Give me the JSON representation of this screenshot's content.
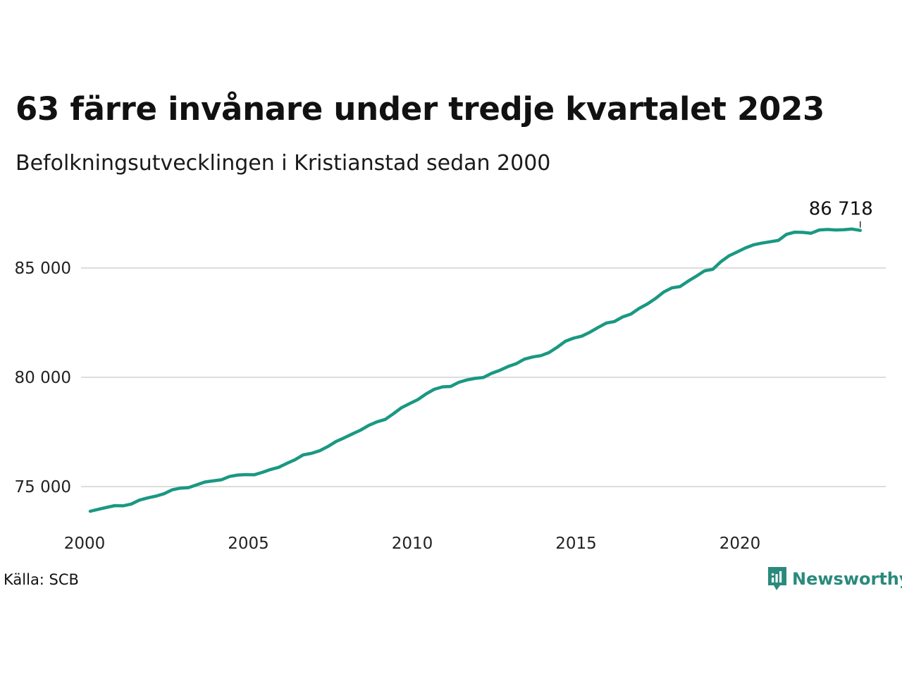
{
  "title": "63 färre invånare under tredje kvartalet 2023",
  "subtitle": "Befolkningsutvecklingen i Kristianstad sedan 2000",
  "source": "Källa: SCB",
  "brand": {
    "name": "Newsworthy",
    "icon": "newsworthy-logo-icon",
    "color": "#2a8a7c"
  },
  "colors": {
    "line": "#1a9882",
    "grid": "#dddddd"
  },
  "chart_data": {
    "type": "line",
    "title": "63 färre invånare under tredje kvartalet 2023",
    "subtitle": "Befolkningsutvecklingen i Kristianstad sedan 2000",
    "xlabel": "",
    "ylabel": "",
    "xlim": [
      2000,
      2024.5
    ],
    "ylim": [
      73500,
      87200
    ],
    "x_ticks": [
      2000,
      2005,
      2010,
      2015,
      2020
    ],
    "x_tick_labels": [
      "2000",
      "2005",
      "2010",
      "2015",
      "2020"
    ],
    "y_ticks": [
      75000,
      80000,
      85000
    ],
    "y_tick_labels": [
      "75 000",
      "80 000",
      "85 000"
    ],
    "grid": "horizontal",
    "legend": "none",
    "end_label": "86 718",
    "series": [
      {
        "x": [
          2000.0,
          2000.25,
          2000.5,
          2000.75,
          2001.0,
          2001.25,
          2001.5,
          2001.75,
          2002.0,
          2002.25,
          2002.5,
          2002.75,
          2003.0,
          2003.25,
          2003.5,
          2003.75,
          2004.0,
          2004.25,
          2004.5,
          2004.75,
          2005.0,
          2005.25,
          2005.5,
          2005.75,
          2006.0,
          2006.25,
          2006.5,
          2006.75,
          2007.0,
          2007.25,
          2007.5,
          2007.75,
          2008.0,
          2008.25,
          2008.5,
          2008.75,
          2009.0,
          2009.25,
          2009.5,
          2009.75,
          2010.0,
          2010.25,
          2010.5,
          2010.75,
          2011.0,
          2011.25,
          2011.5,
          2011.75,
          2012.0,
          2012.25,
          2012.5,
          2012.75,
          2013.0,
          2013.25,
          2013.5,
          2013.75,
          2014.0,
          2014.25,
          2014.5,
          2014.75,
          2015.0,
          2015.25,
          2015.5,
          2015.75,
          2016.0,
          2016.25,
          2016.5,
          2016.75,
          2017.0,
          2017.25,
          2017.5,
          2017.75,
          2018.0,
          2018.25,
          2018.5,
          2018.75,
          2019.0,
          2019.25,
          2019.5,
          2019.75,
          2020.0,
          2020.25,
          2020.5,
          2020.75,
          2021.0,
          2021.25,
          2021.5,
          2021.75,
          2022.0,
          2022.25,
          2022.5,
          2022.75,
          2023.0,
          2023.25,
          2023.5
        ],
        "values": [
          73870,
          73960,
          74050,
          74130,
          74120,
          74200,
          74380,
          74480,
          74560,
          74670,
          74850,
          74930,
          74950,
          75080,
          75210,
          75260,
          75310,
          75460,
          75530,
          75550,
          75540,
          75650,
          75780,
          75880,
          76060,
          76230,
          76450,
          76520,
          76640,
          76830,
          77060,
          77230,
          77410,
          77580,
          77800,
          77960,
          78070,
          78330,
          78610,
          78800,
          78980,
          79240,
          79450,
          79560,
          79580,
          79770,
          79880,
          79950,
          79990,
          80180,
          80320,
          80490,
          80620,
          80830,
          80930,
          80990,
          81130,
          81370,
          81650,
          81790,
          81880,
          82060,
          82280,
          82480,
          82550,
          82760,
          82890,
          83150,
          83350,
          83600,
          83900,
          84090,
          84150,
          84400,
          84630,
          84870,
          84940,
          85290,
          85560,
          85740,
          85920,
          86060,
          86140,
          86200,
          86260,
          86540,
          86640,
          86630,
          86590,
          86740,
          86760,
          86740,
          86750,
          86781,
          86718
        ]
      }
    ]
  }
}
